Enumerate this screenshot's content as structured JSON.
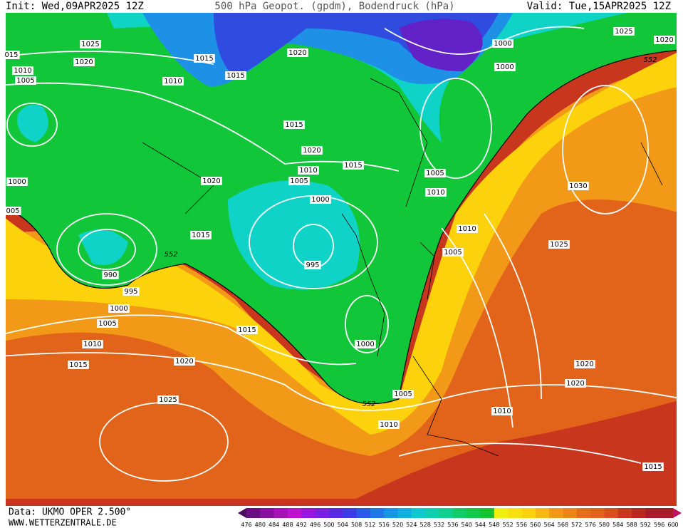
{
  "header": {
    "init": "Init: Wed,09APR2025 12Z",
    "title": "500 hPa Geopot. (gpdm), Bodendruck (hPa)",
    "valid": "Valid: Tue,15APR2025 12Z"
  },
  "footer": {
    "data": "Data: UKMO OPER 2.500°",
    "site": "WWW.WETTERZENTRALE.DE"
  },
  "scale": {
    "labels": [
      476,
      480,
      484,
      488,
      492,
      496,
      500,
      504,
      508,
      512,
      516,
      520,
      524,
      528,
      532,
      536,
      540,
      544,
      548,
      552,
      556,
      560,
      564,
      568,
      572,
      576,
      580,
      584,
      588,
      592,
      596,
      600
    ]
  },
  "isobar_labels": [
    "1025",
    "1020",
    "1010",
    "1005",
    "015",
    "1015",
    "1015",
    "1010",
    "1020",
    "1000",
    "1000",
    "1025",
    "1020",
    "552",
    "1015",
    "1020",
    "1015",
    "1010",
    "1005",
    "1020",
    "1000",
    "1005",
    "1010",
    "1000",
    "005",
    "1030",
    "1015",
    "1010",
    "1005",
    "1025",
    "552",
    "990",
    "995",
    "995",
    "1000",
    "1005",
    "1010",
    "1015",
    "1000",
    "1015",
    "1020",
    "1020",
    "1020",
    "1025",
    "1005",
    "552",
    "1010",
    "1010",
    "1015"
  ]
}
